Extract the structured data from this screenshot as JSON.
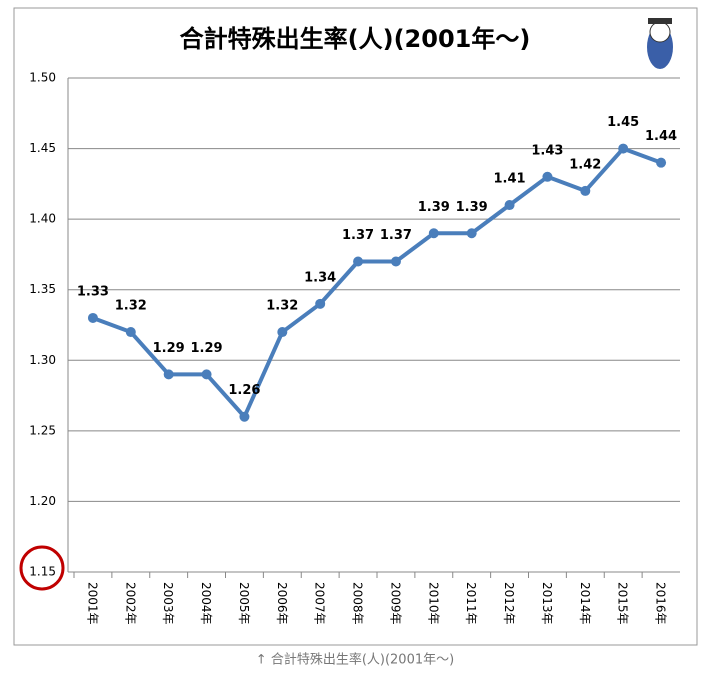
{
  "chart_data": {
    "type": "line",
    "title": "合計特殊出生率(人)(2001年～)",
    "categories": [
      "2001年",
      "2002年",
      "2003年",
      "2004年",
      "2005年",
      "2006年",
      "2007年",
      "2008年",
      "2009年",
      "2010年",
      "2011年",
      "2012年",
      "2013年",
      "2014年",
      "2015年",
      "2016年"
    ],
    "values": [
      1.33,
      1.32,
      1.29,
      1.29,
      1.26,
      1.32,
      1.34,
      1.37,
      1.37,
      1.39,
      1.39,
      1.41,
      1.43,
      1.42,
      1.45,
      1.44
    ],
    "color": "#4a7ebb",
    "ylim": [
      1.15,
      1.5
    ],
    "yticks": [
      1.15,
      {
        "value": 1.2,
        "label": "1.20"
      },
      1.25,
      {
        "value": 1.3,
        "label": "1.30"
      },
      1.35,
      {
        "value": 1.4,
        "label": "1.40"
      },
      1.45,
      {
        "value": 1.5,
        "label": "1.50"
      }
    ],
    "grid": true,
    "caption": "↑ 合計特殊出生率(人)(2001年～)"
  }
}
